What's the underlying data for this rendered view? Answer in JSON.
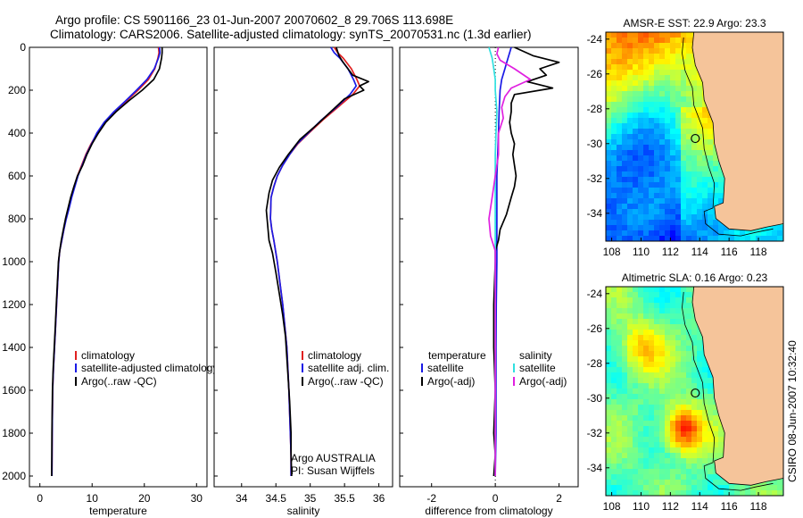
{
  "header": {
    "line1": "Argo profile: CS 5901166_23 01-Jun-2007 20070602_8 29.706S 113.698E",
    "line2": "Climatology: CARS2006. Satellite-adjusted climatology: synTS_20070531.nc (1.3d earlier)"
  },
  "side_label": "CSIRO 08-Jun-2007 10:32:40",
  "colors": {
    "climatology": "#e02020",
    "satellite": "#1a1ae6",
    "argo": "#000000",
    "sal_satellite": "#30e0e0",
    "sal_argo": "#e020e0",
    "land": "#f5c49a"
  },
  "chart_data": [
    {
      "type": "line",
      "id": "temperature",
      "xlabel": "temperature",
      "ylabel": "",
      "xlim": [
        -2,
        32
      ],
      "ylim": [
        2050,
        0
      ],
      "xticks": [
        0,
        10,
        20,
        30
      ],
      "yticks": [
        0,
        200,
        400,
        600,
        800,
        1000,
        1200,
        1400,
        1600,
        1800,
        2000
      ],
      "legend": [
        "climatology",
        "satellite-adjusted climatology",
        "Argo(..raw -QC)"
      ],
      "series": [
        {
          "name": "climatology",
          "color": "climatology",
          "x": [
            22.7,
            22.8,
            22.6,
            22.0,
            20.8,
            18.8,
            16.6,
            14.3,
            12.4,
            11.0,
            9.8,
            8.8,
            8.0,
            7.2,
            6.6,
            6.0,
            5.5,
            5.0,
            4.6,
            4.2,
            3.8,
            3.6,
            3.4,
            3.2,
            3.0,
            2.8,
            2.6,
            2.45,
            2.35,
            2.3
          ],
          "y": [
            0,
            25,
            50,
            100,
            150,
            200,
            250,
            300,
            350,
            400,
            450,
            500,
            550,
            600,
            650,
            700,
            750,
            800,
            850,
            900,
            950,
            1000,
            1100,
            1200,
            1300,
            1400,
            1500,
            1600,
            1800,
            2000
          ]
        },
        {
          "name": "satellite-adjusted climatology",
          "color": "satellite",
          "x": [
            22.9,
            23.0,
            22.7,
            21.9,
            20.5,
            18.5,
            16.4,
            14.2,
            12.3,
            10.9,
            9.9,
            8.9,
            8.1,
            7.3,
            6.7,
            6.1,
            5.6,
            5.05,
            4.6,
            4.2,
            3.8,
            3.6,
            3.4,
            3.2,
            3.0,
            2.8,
            2.6,
            2.45,
            2.35,
            2.3
          ],
          "y": [
            0,
            25,
            50,
            100,
            150,
            200,
            250,
            300,
            350,
            400,
            450,
            500,
            550,
            600,
            650,
            700,
            750,
            800,
            850,
            900,
            950,
            1000,
            1100,
            1200,
            1300,
            1400,
            1500,
            1600,
            1800,
            2000
          ]
        },
        {
          "name": "Argo(..raw -QC)",
          "color": "argo",
          "x": [
            23.4,
            23.4,
            23.3,
            22.9,
            21.8,
            19.6,
            17.0,
            14.6,
            12.6,
            11.2,
            10.0,
            9.0,
            8.2,
            7.2,
            6.5,
            5.9,
            5.4,
            4.9,
            4.5,
            4.1,
            3.8,
            3.55,
            3.35,
            3.15,
            2.95,
            2.75,
            2.55,
            2.4,
            2.3,
            2.25
          ],
          "y": [
            0,
            25,
            50,
            100,
            150,
            200,
            250,
            300,
            350,
            400,
            450,
            500,
            550,
            600,
            650,
            700,
            750,
            800,
            850,
            900,
            950,
            1000,
            1100,
            1200,
            1300,
            1400,
            1500,
            1600,
            1800,
            2000
          ]
        }
      ]
    },
    {
      "type": "line",
      "id": "salinity",
      "xlabel": "salinity",
      "ylabel": "",
      "xlim": [
        33.6,
        36.2
      ],
      "ylim": [
        2050,
        0
      ],
      "xticks": [
        34,
        34.5,
        35,
        35.5,
        36
      ],
      "legend": [
        "climatology",
        "satellite adj. clim.",
        "Argo(..raw -QC)"
      ],
      "annotation": [
        "Argo AUSTRALIA",
        "PI: Susan Wijffels"
      ],
      "series": [
        {
          "name": "climatology",
          "color": "climatology",
          "x": [
            35.35,
            35.4,
            35.48,
            35.6,
            35.68,
            35.72,
            35.62,
            35.4,
            35.18,
            34.98,
            34.82,
            34.7,
            34.6,
            34.52,
            34.47,
            34.43,
            34.42,
            34.44,
            34.47,
            34.52,
            34.56,
            34.6,
            34.63,
            34.66,
            34.69,
            34.71,
            34.72,
            34.72
          ],
          "y": [
            0,
            25,
            50,
            100,
            150,
            180,
            220,
            280,
            340,
            400,
            450,
            500,
            550,
            600,
            650,
            700,
            800,
            850,
            900,
            1000,
            1100,
            1200,
            1300,
            1400,
            1600,
            1800,
            1900,
            2000
          ]
        },
        {
          "name": "satellite adj. clim.",
          "color": "satellite",
          "x": [
            35.3,
            35.35,
            35.43,
            35.55,
            35.63,
            35.67,
            35.58,
            35.38,
            35.16,
            34.97,
            34.81,
            34.7,
            34.6,
            34.52,
            34.47,
            34.43,
            34.42,
            34.44,
            34.47,
            34.52,
            34.56,
            34.6,
            34.63,
            34.66,
            34.69,
            34.71,
            34.72,
            34.72
          ],
          "y": [
            0,
            25,
            50,
            100,
            150,
            180,
            220,
            280,
            340,
            400,
            450,
            500,
            550,
            600,
            650,
            700,
            800,
            850,
            900,
            1000,
            1100,
            1200,
            1300,
            1400,
            1600,
            1800,
            1900,
            2000
          ]
        },
        {
          "name": "Argo(..raw -QC)",
          "color": "argo",
          "x": [
            35.38,
            35.42,
            35.48,
            35.55,
            35.62,
            35.85,
            35.72,
            35.78,
            35.5,
            35.3,
            35.1,
            34.85,
            34.68,
            34.55,
            34.45,
            34.4,
            34.36,
            34.38,
            34.4,
            34.45,
            34.5,
            34.55,
            34.6,
            34.64,
            34.67,
            34.7,
            34.72,
            34.72,
            34.73
          ],
          "y": [
            0,
            40,
            70,
            100,
            130,
            160,
            180,
            200,
            240,
            300,
            360,
            430,
            500,
            560,
            620,
            680,
            760,
            830,
            900,
            960,
            1050,
            1150,
            1250,
            1350,
            1500,
            1650,
            1800,
            1900,
            2000
          ]
        }
      ]
    },
    {
      "type": "line",
      "id": "difference",
      "xlabel": "difference from climatology",
      "ylabel": "",
      "xlim": [
        -3,
        2.6
      ],
      "ylim": [
        2050,
        0
      ],
      "xticks": [
        -2,
        0,
        2
      ],
      "legend_temperature": [
        "temperature",
        "satellite",
        "Argo(-adj)"
      ],
      "legend_salinity": [
        "salinity",
        "satellite",
        "Argo(-adj)"
      ],
      "series": [
        {
          "name": "temperature satellite",
          "color": "satellite",
          "x": [
            0.5,
            0.45,
            0.4,
            0.35,
            0.3,
            0.2,
            0.15,
            0.12,
            0.1,
            0.05,
            0.05,
            0.05,
            0.03,
            0.02,
            0.02,
            0.02,
            0.0
          ],
          "y": [
            0,
            25,
            50,
            75,
            100,
            150,
            200,
            300,
            400,
            600,
            800,
            1000,
            1200,
            1400,
            1600,
            1800,
            2000
          ]
        },
        {
          "name": "temperature Argo(-adj)",
          "color": "argo",
          "x": [
            0.6,
            1.2,
            2.0,
            1.4,
            1.6,
            1.0,
            1.8,
            0.6,
            0.5,
            0.5,
            0.45,
            0.5,
            0.6,
            0.55,
            0.6,
            0.65,
            0.6,
            0.5,
            0.35,
            0.15,
            0.1,
            0.0,
            0.0,
            -0.05,
            -0.05,
            0.0,
            -0.05,
            0.0,
            -0.05
          ],
          "y": [
            0,
            40,
            70,
            100,
            130,
            160,
            190,
            220,
            260,
            300,
            350,
            400,
            450,
            500,
            550,
            600,
            650,
            700,
            780,
            850,
            900,
            950,
            1000,
            1200,
            1400,
            1600,
            1800,
            1900,
            2000
          ]
        },
        {
          "name": "salinity satellite",
          "color": "sal_satellite",
          "x": [
            -0.2,
            -0.15,
            -0.1,
            -0.05,
            0.0,
            0.0,
            0.05,
            0.02,
            0.0,
            0.0,
            0.0,
            0.0,
            0.0,
            0.0,
            0.0
          ],
          "y": [
            0,
            25,
            50,
            100,
            150,
            200,
            300,
            400,
            500,
            600,
            800,
            1000,
            1400,
            1800,
            2000
          ]
        },
        {
          "name": "salinity Argo(-adj)",
          "color": "sal_argo",
          "x": [
            0.1,
            0.05,
            0.15,
            0.6,
            1.1,
            0.5,
            0.3,
            0.2,
            0.25,
            0.1,
            0.1,
            0.0,
            -0.1,
            -0.2,
            -0.15,
            0.0,
            0.0,
            0.0
          ],
          "y": [
            0,
            30,
            60,
            100,
            150,
            190,
            230,
            280,
            330,
            400,
            500,
            600,
            700,
            800,
            880,
            950,
            1200,
            2000
          ]
        }
      ]
    }
  ],
  "maps": [
    {
      "title": "AMSR-E SST: 22.9 Argo: 23.3",
      "xticks": [
        "108",
        "110",
        "112",
        "114",
        "116",
        "118"
      ],
      "yticks": [
        "-24",
        "-26",
        "-28",
        "-30",
        "-32",
        "-34"
      ]
    },
    {
      "title": "Altimetric SLA: 0.16 Argo: 0.23",
      "xticks": [
        "108",
        "110",
        "112",
        "114",
        "116",
        "118"
      ],
      "yticks": [
        "-24",
        "-26",
        "-28",
        "-30",
        "-32",
        "-34"
      ]
    }
  ]
}
